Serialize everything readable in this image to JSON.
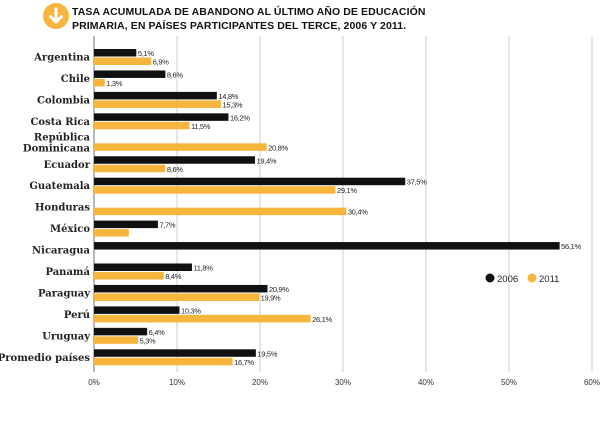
{
  "header": {
    "title_line1": "TASA ACUMULADA DE ABANDONO AL ÚLTIMO AÑO DE EDUCACIÓN",
    "title_line2": "PRIMARIA, EN PAÍSES PARTICIPANTES DEL TERCE, 2006 Y 2011.",
    "icon": "arrow-down-circle-icon"
  },
  "chart_data": {
    "type": "bar",
    "orientation": "horizontal",
    "title": "TASA ACUMULADA DE ABANDONO AL ÚLTIMO AÑO DE EDUCACIÓN PRIMARIA, EN PAÍSES PARTICIPANTES DEL TERCE, 2006 Y 2011.",
    "categories": [
      "Argentina",
      "Chile",
      "Colombia",
      "Costa Rica",
      "República Dominicana",
      "Ecuador",
      "Guatemala",
      "Honduras",
      "México",
      "Nicaragua",
      "Panamá",
      "Paraguay",
      "Perú",
      "Uruguay",
      "Promedio países"
    ],
    "series": [
      {
        "name": "2006",
        "color": "#111111",
        "values": [
          5.1,
          8.6,
          14.8,
          16.2,
          null,
          19.4,
          37.5,
          null,
          7.7,
          56.1,
          11.8,
          20.9,
          10.3,
          6.4,
          19.5
        ],
        "labels": [
          "5,1%",
          "8,6%",
          "14,8%",
          "16,2%",
          null,
          "19,4%",
          "37,5%",
          null,
          "7,7%",
          "56,1%",
          "11,8%",
          "20,9%",
          "10,3%",
          "6,4%",
          "19,5%"
        ]
      },
      {
        "name": "2011",
        "color": "#f6b53c",
        "values": [
          6.9,
          1.3,
          15.3,
          11.5,
          20.8,
          8.6,
          29.1,
          30.4,
          4.2,
          null,
          8.4,
          19.9,
          26.1,
          5.3,
          16.7
        ],
        "labels": [
          "6,9%",
          "1,3%",
          "15,3%",
          "11,5%",
          "20,8%",
          "8,6%",
          "29,1%",
          "30,4%",
          null,
          null,
          "8,4%",
          "19,9%",
          "26,1%",
          "5,3%",
          "16,7%"
        ]
      }
    ],
    "xticks": [
      "0%",
      "10%",
      "20%",
      "30%",
      "40%",
      "50%",
      "60%"
    ],
    "xlim": [
      0,
      60
    ],
    "grid": true,
    "legend": "right"
  }
}
